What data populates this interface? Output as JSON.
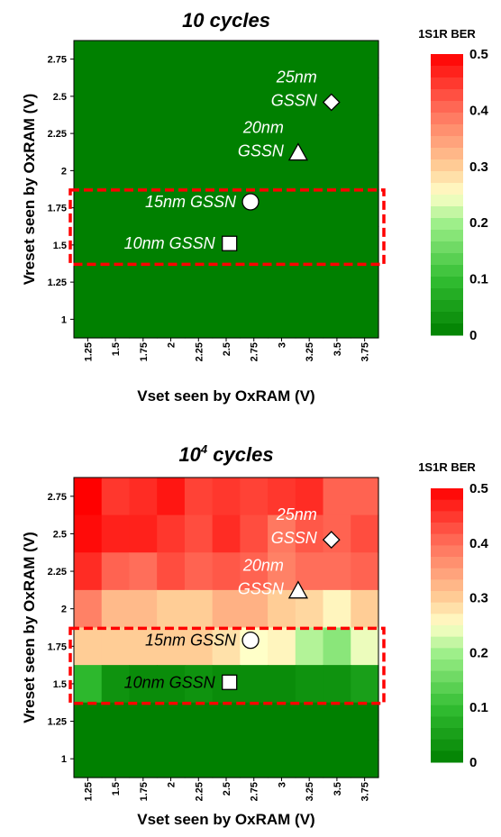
{
  "chart_data": [
    {
      "type": "heatmap",
      "title": "10 cycles",
      "title_superscript": "",
      "xlabel": "Vset seen by OxRAM (V)",
      "ylabel": "Vreset seen by OxRAM (V)",
      "x_ticks": [
        "1.25",
        "1.5",
        "1.75",
        "2",
        "2.25",
        "2.5",
        "2.75",
        "3",
        "3.25",
        "3.5",
        "3.75"
      ],
      "y_ticks": [
        "2.75",
        "2.5",
        "2.25",
        "2",
        "1.75",
        "1.5",
        "1.25",
        "1"
      ],
      "x_values": [
        1.25,
        1.5,
        1.75,
        2,
        2.25,
        2.5,
        2.75,
        3,
        3.25,
        3.5,
        3.75
      ],
      "y_values": [
        2.75,
        2.5,
        2.25,
        2,
        1.75,
        1.5,
        1.25,
        1
      ],
      "values": [
        [
          0,
          0,
          0,
          0,
          0,
          0,
          0,
          0,
          0,
          0,
          0
        ],
        [
          0,
          0,
          0,
          0,
          0,
          0,
          0,
          0,
          0,
          0,
          0
        ],
        [
          0,
          0,
          0,
          0,
          0,
          0,
          0,
          0,
          0,
          0,
          0
        ],
        [
          0,
          0,
          0,
          0,
          0,
          0,
          0,
          0,
          0,
          0,
          0
        ],
        [
          0,
          0,
          0,
          0,
          0,
          0,
          0,
          0,
          0,
          0,
          0
        ],
        [
          0,
          0,
          0,
          0,
          0,
          0,
          0,
          0,
          0,
          0,
          0
        ],
        [
          0,
          0,
          0,
          0,
          0,
          0,
          0,
          0,
          0,
          0,
          0
        ],
        [
          0,
          0,
          0,
          0,
          0,
          0,
          0,
          0,
          0,
          0,
          0
        ]
      ],
      "colorbar": {
        "title": "1S1R BER",
        "ticks": [
          "0.5",
          "0.4",
          "0.3",
          "0.2",
          "0.1",
          "0"
        ],
        "min": 0,
        "max": 0.5
      },
      "markers": [
        {
          "label_lines": [
            "25nm",
            "GSSN"
          ],
          "shape": "diamond",
          "x": 3.45,
          "y": 2.46,
          "label_color": "#ffffff"
        },
        {
          "label_lines": [
            "20nm",
            "GSSN"
          ],
          "shape": "triangle",
          "x": 3.15,
          "y": 2.12,
          "label_color": "#ffffff"
        },
        {
          "label_lines": [
            "15nm GSSN"
          ],
          "shape": "circle",
          "x": 2.72,
          "y": 1.79,
          "label_color": "#ffffff"
        },
        {
          "label_lines": [
            "10nm GSSN"
          ],
          "shape": "square",
          "x": 2.53,
          "y": 1.51,
          "label_color": "#ffffff"
        }
      ],
      "highlight_box": {
        "y_range": [
          1.37,
          1.87
        ],
        "color": "#ff0000"
      }
    },
    {
      "type": "heatmap",
      "title": "10",
      "title_superscript": "4",
      "title_suffix": " cycles",
      "xlabel": "Vset seen by OxRAM (V)",
      "ylabel": "Vreset seen by OxRAM (V)",
      "x_ticks": [
        "1.25",
        "1.5",
        "1.75",
        "2",
        "2.25",
        "2.5",
        "2.75",
        "3",
        "3.25",
        "3.5",
        "3.75"
      ],
      "y_ticks": [
        "2.75",
        "2.5",
        "2.25",
        "2",
        "1.75",
        "1.5",
        "1.25",
        "1"
      ],
      "x_values": [
        1.25,
        1.5,
        1.75,
        2,
        2.25,
        2.5,
        2.75,
        3,
        3.25,
        3.5,
        3.75
      ],
      "y_values": [
        2.75,
        2.5,
        2.25,
        2,
        1.75,
        1.5,
        1.25,
        1
      ],
      "values": [
        [
          0.5,
          0.45,
          0.46,
          0.48,
          0.44,
          0.45,
          0.44,
          0.45,
          0.46,
          0.41,
          0.41
        ],
        [
          0.49,
          0.47,
          0.47,
          0.45,
          0.43,
          0.46,
          0.43,
          0.39,
          0.42,
          0.41,
          0.43
        ],
        [
          0.46,
          0.41,
          0.4,
          0.43,
          0.41,
          0.42,
          0.41,
          0.38,
          0.4,
          0.4,
          0.41
        ],
        [
          0.38,
          0.32,
          0.32,
          0.3,
          0.3,
          0.33,
          0.33,
          0.3,
          0.29,
          0.26,
          0.3
        ],
        [
          0.3,
          0.3,
          0.3,
          0.3,
          0.3,
          0.28,
          0.25,
          0.26,
          0.21,
          0.18,
          0.24
        ],
        [
          0.09,
          0.03,
          0.02,
          0.02,
          0.03,
          0.02,
          0.02,
          0.02,
          0.03,
          0.03,
          0.05
        ],
        [
          0,
          0,
          0,
          0,
          0,
          0,
          0,
          0,
          0,
          0,
          0
        ],
        [
          0,
          0,
          0,
          0,
          0,
          0,
          0,
          0,
          0,
          0,
          0
        ]
      ],
      "colorbar": {
        "title": "1S1R BER",
        "ticks": [
          "0.5",
          "0.4",
          "0.3",
          "0.2",
          "0.1",
          "0"
        ],
        "min": 0,
        "max": 0.5
      },
      "markers": [
        {
          "label_lines": [
            "25nm",
            "GSSN"
          ],
          "shape": "diamond",
          "x": 3.45,
          "y": 2.46,
          "label_color": "#ffffff"
        },
        {
          "label_lines": [
            "20nm",
            "GSSN"
          ],
          "shape": "triangle",
          "x": 3.15,
          "y": 2.12,
          "label_color": "#ffffff"
        },
        {
          "label_lines": [
            "15nm GSSN"
          ],
          "shape": "circle",
          "x": 2.72,
          "y": 1.79,
          "label_color": "#000000"
        },
        {
          "label_lines": [
            "10nm GSSN"
          ],
          "shape": "square",
          "x": 2.53,
          "y": 1.51,
          "label_color": "#000000"
        }
      ],
      "highlight_box": {
        "y_range": [
          1.37,
          1.87
        ],
        "color": "#ff0000"
      }
    }
  ]
}
